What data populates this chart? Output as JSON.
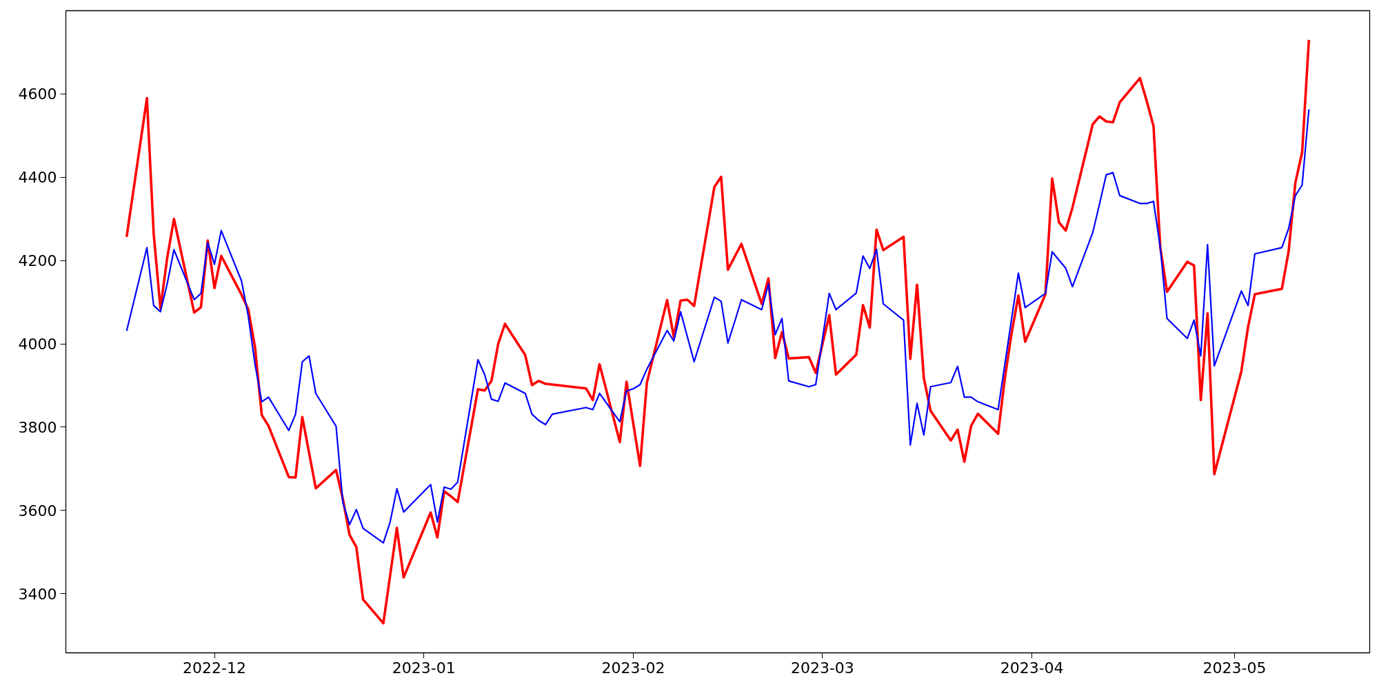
{
  "chart_data": {
    "type": "line",
    "xlim": [
      "2022-11-09",
      "2023-05-21"
    ],
    "ylim": [
      3258,
      4800
    ],
    "xticks": [
      {
        "value": "2022-12-01",
        "label": "2022-12"
      },
      {
        "value": "2023-01-01",
        "label": "2023-01"
      },
      {
        "value": "2023-02-01",
        "label": "2023-02"
      },
      {
        "value": "2023-03-01",
        "label": "2023-03"
      },
      {
        "value": "2023-04-01",
        "label": "2023-04"
      },
      {
        "value": "2023-05-01",
        "label": "2023-05"
      }
    ],
    "yticks": [
      3400,
      3600,
      3800,
      4000,
      4200,
      4400,
      4600
    ],
    "grid": false,
    "series": [
      {
        "color": "#ff0000",
        "x": [
          "2022-11-18",
          "2022-11-21",
          "2022-11-22",
          "2022-11-23",
          "2022-11-24",
          "2022-11-25",
          "2022-11-28",
          "2022-11-29",
          "2022-11-30",
          "2022-12-01",
          "2022-12-02",
          "2022-12-05",
          "2022-12-06",
          "2022-12-07",
          "2022-12-08",
          "2022-12-09",
          "2022-12-12",
          "2022-12-13",
          "2022-12-14",
          "2022-12-16",
          "2022-12-19",
          "2022-12-20",
          "2022-12-21",
          "2022-12-22",
          "2022-12-23",
          "2022-12-26",
          "2022-12-28",
          "2022-12-29",
          "2023-01-02",
          "2023-01-03",
          "2023-01-04",
          "2023-01-05",
          "2023-01-06",
          "2023-01-09",
          "2023-01-10",
          "2023-01-11",
          "2023-01-12",
          "2023-01-13",
          "2023-01-16",
          "2023-01-17",
          "2023-01-18",
          "2023-01-19",
          "2023-01-25",
          "2023-01-26",
          "2023-01-27",
          "2023-01-30",
          "2023-01-31",
          "2023-02-02",
          "2023-02-03",
          "2023-02-06",
          "2023-02-07",
          "2023-02-08",
          "2023-02-09",
          "2023-02-10",
          "2023-02-13",
          "2023-02-14",
          "2023-02-15",
          "2023-02-17",
          "2023-02-20",
          "2023-02-21",
          "2023-02-22",
          "2023-02-23",
          "2023-02-24",
          "2023-02-27",
          "2023-02-28",
          "2023-03-02",
          "2023-03-03",
          "2023-03-06",
          "2023-03-07",
          "2023-03-08",
          "2023-03-09",
          "2023-03-10",
          "2023-03-13",
          "2023-03-14",
          "2023-03-15",
          "2023-03-16",
          "2023-03-17",
          "2023-03-20",
          "2023-03-21",
          "2023-03-22",
          "2023-03-23",
          "2023-03-24",
          "2023-03-27",
          "2023-03-28",
          "2023-03-29",
          "2023-03-30",
          "2023-03-31",
          "2023-04-03",
          "2023-04-04",
          "2023-04-05",
          "2023-04-06",
          "2023-04-07",
          "2023-04-10",
          "2023-04-11",
          "2023-04-12",
          "2023-04-13",
          "2023-04-14",
          "2023-04-17",
          "2023-04-18",
          "2023-04-19",
          "2023-04-20",
          "2023-04-21",
          "2023-04-24",
          "2023-04-25",
          "2023-04-26",
          "2023-04-27",
          "2023-04-28",
          "2023-05-02",
          "2023-05-03",
          "2023-05-04",
          "2023-05-08",
          "2023-05-09",
          "2023-05-10",
          "2023-05-11",
          "2023-05-12"
        ],
        "values": [
          4257,
          4590,
          4265,
          4085,
          4206,
          4300,
          4075,
          4088,
          4248,
          4134,
          4211,
          4118,
          4083,
          3992,
          3829,
          3803,
          3680,
          3679,
          3824,
          3653,
          3697,
          3628,
          3541,
          3512,
          3386,
          3329,
          3558,
          3439,
          3595,
          3535,
          3646,
          3634,
          3620,
          3891,
          3888,
          3911,
          4000,
          4048,
          3973,
          3901,
          3911,
          3904,
          3893,
          3865,
          3951,
          3764,
          3909,
          3707,
          3906,
          4105,
          4016,
          4104,
          4106,
          4091,
          4377,
          4401,
          4178,
          4240,
          4096,
          4157,
          3966,
          4028,
          3965,
          3968,
          3930,
          4069,
          3926,
          3974,
          4093,
          4039,
          4274,
          4225,
          4257,
          3964,
          4142,
          3918,
          3839,
          3768,
          3794,
          3717,
          3803,
          3832,
          3784,
          3918,
          4026,
          4116,
          4005,
          4119,
          4397,
          4292,
          4272,
          4327,
          4527,
          4546,
          4534,
          4532,
          4580,
          4638,
          4583,
          4523,
          4232,
          4125,
          4197,
          4188,
          3865,
          4073,
          3687,
          3934,
          4041,
          4119,
          4132,
          4222,
          4387,
          4460,
          4730
        ]
      },
      {
        "color": "#0000ff",
        "x": [
          "2022-11-18",
          "2022-11-21",
          "2022-11-22",
          "2022-11-23",
          "2022-11-24",
          "2022-11-25",
          "2022-11-28",
          "2022-11-29",
          "2022-11-30",
          "2022-12-01",
          "2022-12-02",
          "2022-12-05",
          "2022-12-06",
          "2022-12-07",
          "2022-12-08",
          "2022-12-09",
          "2022-12-12",
          "2022-12-13",
          "2022-12-14",
          "2022-12-15",
          "2022-12-16",
          "2022-12-19",
          "2022-12-20",
          "2022-12-21",
          "2022-12-22",
          "2022-12-23",
          "2022-12-26",
          "2022-12-27",
          "2022-12-28",
          "2022-12-29",
          "2023-01-02",
          "2023-01-03",
          "2023-01-04",
          "2023-01-05",
          "2023-01-06",
          "2023-01-09",
          "2023-01-10",
          "2023-01-11",
          "2023-01-12",
          "2023-01-13",
          "2023-01-16",
          "2023-01-17",
          "2023-01-18",
          "2023-01-19",
          "2023-01-20",
          "2023-01-25",
          "2023-01-26",
          "2023-01-27",
          "2023-01-30",
          "2023-01-31",
          "2023-02-01",
          "2023-02-02",
          "2023-02-03",
          "2023-02-06",
          "2023-02-07",
          "2023-02-08",
          "2023-02-10",
          "2023-02-13",
          "2023-02-14",
          "2023-02-15",
          "2023-02-16",
          "2023-02-17",
          "2023-02-20",
          "2023-02-21",
          "2023-02-22",
          "2023-02-23",
          "2023-02-24",
          "2023-02-27",
          "2023-02-28",
          "2023-03-02",
          "2023-03-03",
          "2023-03-06",
          "2023-03-07",
          "2023-03-08",
          "2023-03-09",
          "2023-03-10",
          "2023-03-13",
          "2023-03-14",
          "2023-03-15",
          "2023-03-16",
          "2023-03-17",
          "2023-03-20",
          "2023-03-21",
          "2023-03-22",
          "2023-03-23",
          "2023-03-24",
          "2023-03-27",
          "2023-03-30",
          "2023-03-31",
          "2023-04-03",
          "2023-04-04",
          "2023-04-05",
          "2023-04-06",
          "2023-04-07",
          "2023-04-10",
          "2023-04-11",
          "2023-04-12",
          "2023-04-13",
          "2023-04-14",
          "2023-04-17",
          "2023-04-18",
          "2023-04-19",
          "2023-04-20",
          "2023-04-21",
          "2023-04-24",
          "2023-04-25",
          "2023-04-26",
          "2023-04-27",
          "2023-04-28",
          "2023-05-02",
          "2023-05-03",
          "2023-05-04",
          "2023-05-08",
          "2023-05-09",
          "2023-05-10",
          "2023-05-11",
          "2023-05-12"
        ],
        "values": [
          4031,
          4231,
          4092,
          4077,
          4144,
          4226,
          4106,
          4121,
          4243,
          4191,
          4272,
          4151,
          4067,
          3951,
          3861,
          3872,
          3792,
          3831,
          3957,
          3971,
          3881,
          3802,
          3620,
          3566,
          3602,
          3557,
          3522,
          3572,
          3652,
          3596,
          3662,
          3572,
          3656,
          3651,
          3668,
          3962,
          3926,
          3867,
          3862,
          3906,
          3881,
          3831,
          3816,
          3806,
          3831,
          3847,
          3842,
          3881,
          3813,
          3887,
          3892,
          3902,
          3939,
          4032,
          4007,
          4077,
          3957,
          4112,
          4102,
          4002,
          4053,
          4106,
          4082,
          4144,
          4022,
          4061,
          3911,
          3897,
          3902,
          4121,
          4082,
          4122,
          4211,
          4181,
          4227,
          4096,
          4057,
          3757,
          3857,
          3781,
          3897,
          3907,
          3946,
          3872,
          3872,
          3861,
          3842,
          4170,
          4087,
          4121,
          4221,
          4201,
          4182,
          4137,
          4267,
          4335,
          4406,
          4411,
          4356,
          4337,
          4337,
          4342,
          4232,
          4061,
          4013,
          4057,
          3971,
          4238,
          3947,
          4127,
          4092,
          4216,
          4231,
          4277,
          4356,
          4381,
          4563
        ]
      }
    ]
  }
}
